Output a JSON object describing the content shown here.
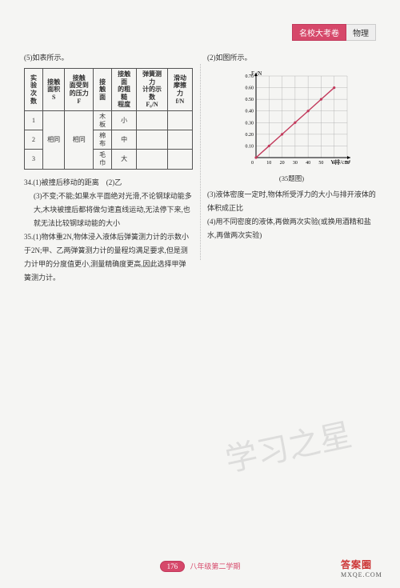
{
  "header": {
    "left": "名校大考卷",
    "right": "物理"
  },
  "left_col": {
    "p5": "(5)如表所示。",
    "table": {
      "headers": [
        "实验\n次数",
        "接触\n面积S",
        "接触\n面受到\n的压力F",
        "接触\n面",
        "接触面\n的粗糙\n程度",
        "弹簧测力\n计的示数\nF₀/N",
        "滑动\n摩擦力\nf/N"
      ],
      "rows": [
        [
          "1",
          "",
          "",
          "木板",
          "小",
          "",
          ""
        ],
        [
          "2",
          "相同",
          "相同",
          "棉布",
          "中",
          "",
          ""
        ],
        [
          "3",
          "",
          "",
          "毛巾",
          "大",
          "",
          ""
        ]
      ]
    },
    "q34_1": "34.(1)被撞后移动的距离　(2)乙",
    "q34_3": "(3)不变;不能;如果水平面绝对光滑,不论钢球动能多大,木块被撞后都将做匀速直线运动,无法停下来,也就无法比较钢球动能的大小",
    "q35_1": "35.(1)物体重2N,物体浸入液体后弹簧测力计的示数小于2N;甲、乙两弹簧测力计的量程均满足要求,但是测力计甲的分度值更小,测量精确度更高,因此选择甲弹簧测力计。"
  },
  "right_col": {
    "p2": "(2)如图所示。",
    "chart": {
      "ylabel": "F₀/N",
      "xlabel": "V排/cm³",
      "ylim": [
        0,
        0.7
      ],
      "yticks": [
        0,
        0.1,
        0.2,
        0.3,
        0.4,
        0.5,
        0.6,
        0.7
      ],
      "xlim": [
        0,
        70
      ],
      "xticks": [
        0,
        10,
        20,
        30,
        40,
        50,
        60,
        70
      ],
      "points": [
        [
          0,
          0
        ],
        [
          10,
          0.1
        ],
        [
          20,
          0.2
        ],
        [
          30,
          0.3
        ],
        [
          40,
          0.4
        ],
        [
          50,
          0.5
        ],
        [
          60,
          0.6
        ]
      ],
      "line_color": "#c23a5c",
      "grid_color": "#aaaaaa",
      "bg": "#f5f5f3"
    },
    "caption": "(35题图)",
    "p3": "(3)液体密度一定时,物体所受浮力的大小与排开液体的体积成正比",
    "p4": "(4)用不同密度的液体,再做两次实验(或换用酒精和盐水,再做两次实验)"
  },
  "watermark": "学习之星",
  "footer": {
    "page": "176",
    "text": "八年级第二学期"
  },
  "stamp": {
    "a": "答案圈",
    "b": "MXQE.COM"
  }
}
